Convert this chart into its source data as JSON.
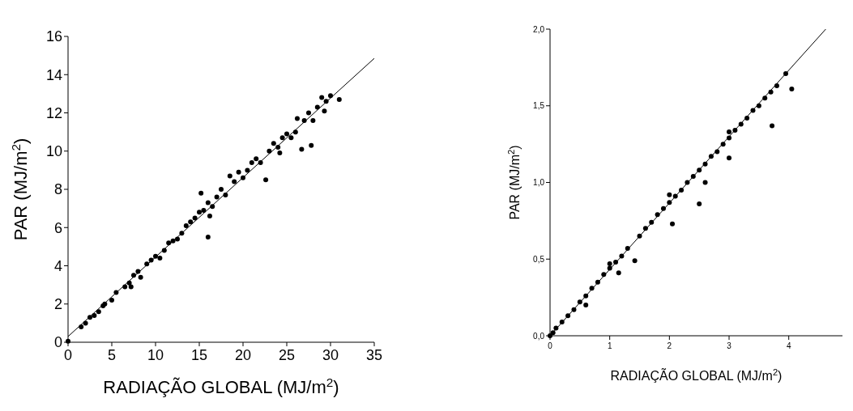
{
  "chart_data": [
    {
      "type": "scatter",
      "xlabel": "RADIAÇÃO GLOBAL (MJ/m$^{2}$)",
      "ylabel": "PAR (MJ/m$^{2}$)",
      "xlim": [
        0,
        35
      ],
      "ylim": [
        0,
        16
      ],
      "xticks": [
        0,
        5,
        10,
        15,
        20,
        25,
        30,
        35
      ],
      "yticks": [
        0,
        2,
        4,
        6,
        8,
        10,
        12,
        14,
        16
      ],
      "marker": "circle",
      "series": [
        {
          "color": "#000000",
          "x": [
            0,
            1.5,
            2,
            2.5,
            3,
            3.5,
            4,
            4.2,
            5,
            5.5,
            6.5,
            7,
            7.2,
            7.5,
            8,
            8.3,
            9,
            9.5,
            10,
            10.5,
            11,
            11.5,
            12,
            12.5,
            13,
            13.5,
            14,
            14.5,
            15,
            15.2,
            15.5,
            16,
            16,
            16.2,
            16.5,
            17,
            17.5,
            18,
            18.5,
            19,
            19.5,
            20,
            20.5,
            21,
            21.5,
            22,
            22.6,
            23,
            23.5,
            24,
            24.2,
            24.5,
            25,
            25.5,
            26,
            26.2,
            26.7,
            27,
            27.5,
            27.8,
            28,
            28.5,
            29,
            29.3,
            29.5,
            30,
            31
          ],
          "values": [
            0.05,
            0.8,
            1.0,
            1.3,
            1.4,
            1.6,
            1.9,
            2.0,
            2.2,
            2.6,
            2.9,
            3.1,
            2.9,
            3.5,
            3.7,
            3.4,
            4.1,
            4.3,
            4.5,
            4.4,
            4.8,
            5.2,
            5.3,
            5.4,
            5.7,
            6.1,
            6.3,
            6.5,
            6.8,
            7.8,
            6.9,
            7.3,
            5.5,
            6.6,
            7.1,
            7.6,
            8.0,
            7.7,
            8.7,
            8.4,
            8.9,
            8.6,
            9.0,
            9.4,
            9.6,
            9.4,
            8.5,
            10.0,
            10.4,
            10.2,
            9.9,
            10.7,
            10.9,
            10.7,
            11.0,
            11.7,
            10.1,
            11.6,
            12.0,
            10.3,
            11.6,
            12.3,
            12.8,
            12.1,
            12.6,
            12.9,
            12.7
          ]
        },
        {
          "type": "line",
          "marker": "none",
          "color": "#000000",
          "x": [
            0,
            35
          ],
          "values": [
            0.3,
            14.85
          ]
        }
      ]
    },
    {
      "type": "scatter",
      "xlabel": "RADIAÇÃO GLOBAL (MJ/m$^{2}$)",
      "ylabel": "PAR (MJ/m$^{2}$)",
      "xlim": [
        0,
        4.9
      ],
      "ylim": [
        0,
        2
      ],
      "xticks": [
        0,
        1,
        2,
        3,
        4
      ],
      "yticks": [
        {
          "value": 0,
          "label": "0,0"
        },
        {
          "value": 0.5,
          "label": "0,5"
        },
        {
          "value": 1,
          "label": "1,0"
        },
        {
          "value": 1.5,
          "label": "1,5"
        },
        {
          "value": 2,
          "label": "2,0"
        }
      ],
      "marker": "circle",
      "series": [
        {
          "color": "#000000",
          "x": [
            0,
            0.05,
            0.1,
            0.2,
            0.3,
            0.4,
            0.5,
            0.6,
            0.6,
            0.7,
            0.8,
            0.9,
            1.0,
            1.0,
            1.1,
            1.15,
            1.2,
            1.3,
            1.42,
            1.5,
            1.6,
            1.7,
            1.8,
            1.9,
            2.0,
            2.0,
            2.05,
            2.1,
            2.2,
            2.3,
            2.4,
            2.5,
            2.5,
            2.6,
            2.6,
            2.7,
            2.8,
            2.9,
            3.0,
            3.0,
            3.0,
            3.1,
            3.2,
            3.3,
            3.4,
            3.5,
            3.6,
            3.7,
            3.72,
            3.8,
            3.95,
            4.05
          ],
          "values": [
            0,
            0.02,
            0.05,
            0.09,
            0.13,
            0.17,
            0.22,
            0.26,
            0.2,
            0.31,
            0.35,
            0.4,
            0.44,
            0.47,
            0.48,
            0.41,
            0.52,
            0.57,
            0.49,
            0.65,
            0.7,
            0.74,
            0.79,
            0.83,
            0.87,
            0.92,
            0.73,
            0.91,
            0.95,
            1.0,
            1.04,
            1.08,
            0.86,
            1.12,
            1.0,
            1.17,
            1.2,
            1.25,
            1.29,
            1.16,
            1.33,
            1.34,
            1.38,
            1.42,
            1.47,
            1.5,
            1.55,
            1.59,
            1.37,
            1.63,
            1.71,
            1.61
          ]
        },
        {
          "type": "line",
          "marker": "none",
          "color": "#000000",
          "x": [
            0,
            4.62
          ],
          "values": [
            0,
            2.0
          ]
        }
      ]
    }
  ]
}
